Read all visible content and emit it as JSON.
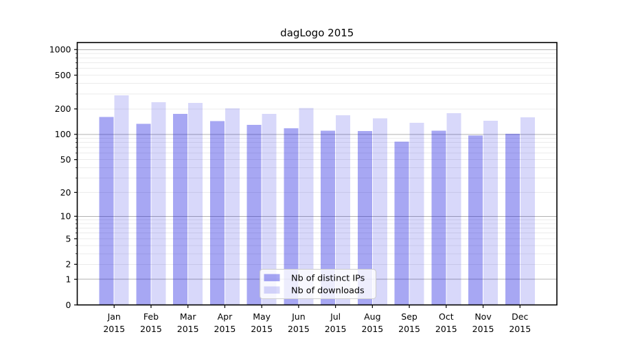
{
  "chart_data": {
    "type": "bar",
    "title": "dagLogo 2015",
    "categories": [
      "Jan",
      "Feb",
      "Mar",
      "Apr",
      "May",
      "Jun",
      "Jul",
      "Aug",
      "Sep",
      "Oct",
      "Nov",
      "Dec"
    ],
    "x_sublabel": "2015",
    "series": [
      {
        "name": "Nb of distinct IPs",
        "color": "rgba(10,10,223,0.36)",
        "values": [
          160,
          133,
          175,
          143,
          130,
          118,
          111,
          109,
          82,
          111,
          97,
          102
        ]
      },
      {
        "name": "Nb of downloads",
        "color": "rgba(10,10,223,0.16)",
        "values": [
          290,
          239,
          235,
          202,
          174,
          204,
          168,
          155,
          137,
          178,
          145,
          159
        ]
      }
    ],
    "y_scale": "log1p",
    "ylim": [
      0,
      1210
    ],
    "xlim": [
      -1,
      12
    ],
    "y_ticks": [
      0,
      1,
      2,
      5,
      10,
      20,
      50,
      100,
      200,
      500,
      1000
    ],
    "y_major_gridlines": [
      1,
      10,
      100,
      1000
    ],
    "y_minor_gridlines": [
      2,
      3,
      4,
      5,
      6,
      7,
      8,
      9,
      20,
      30,
      40,
      50,
      60,
      70,
      80,
      90,
      200,
      300,
      400,
      500,
      600,
      700,
      800,
      900
    ],
    "grid": {
      "on": true,
      "major_color": "#b0b0b0",
      "minor_color": "#ebebeb"
    },
    "legend": {
      "position": "lower center",
      "background": "rgba(255,255,255,0.8)",
      "border_color": "#cccccc",
      "entries": [
        "Nb of distinct IPs",
        "Nb of downloads"
      ]
    },
    "colors": {
      "frame": "#000000",
      "text": "#000000",
      "background": "#ffffff"
    },
    "bar_width_fraction": 0.4
  }
}
